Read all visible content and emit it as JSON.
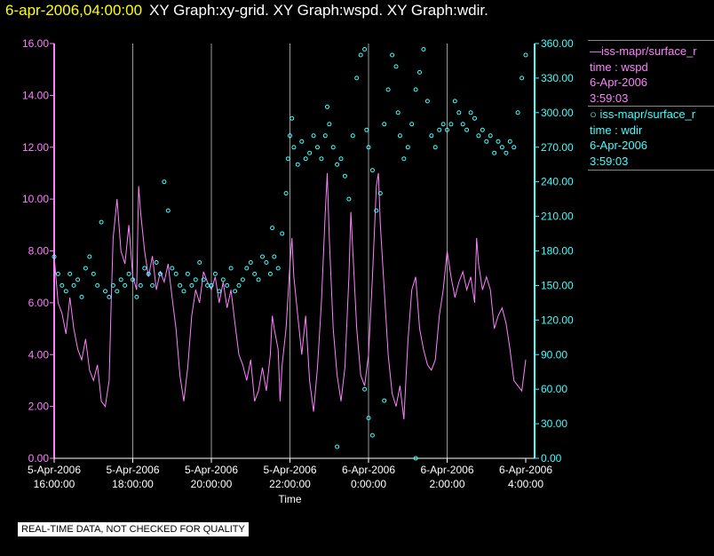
{
  "header": {
    "timestamp": "6-apr-2006,04:00:00",
    "graphs": "XY Graph:xy-grid.  XY Graph:wspd.  XY Graph:wdir."
  },
  "legend": [
    {
      "label": "iss-mapr/surface_r",
      "line1": "time : wspd",
      "line2": "6-Apr-2006",
      "line3": "3:59:03",
      "color": "#ff80ff",
      "marker": "line"
    },
    {
      "label": "iss-mapr/surface_r",
      "line1": "time : wdir",
      "line2": "6-Apr-2006",
      "line3": "3:59:03",
      "color": "#40ffff",
      "marker": "circle"
    }
  ],
  "notice": "REAL-TIME DATA, NOT CHECKED FOR QUALITY",
  "chart_data": {
    "type": "line",
    "title": "",
    "xlabel": "Time",
    "xlim": [
      16.0,
      28.0
    ],
    "x_ticks": [
      {
        "v": 16,
        "d": "5-Apr-2006",
        "t": "16:00:00"
      },
      {
        "v": 18,
        "d": "5-Apr-2006",
        "t": "18:00:00"
      },
      {
        "v": 20,
        "d": "5-Apr-2006",
        "t": "20:00:00"
      },
      {
        "v": 22,
        "d": "5-Apr-2006",
        "t": "22:00:00"
      },
      {
        "v": 24,
        "d": "6-Apr-2006",
        "t": "0:00:00"
      },
      {
        "v": 26,
        "d": "6-Apr-2006",
        "t": "2:00:00"
      },
      {
        "v": 28,
        "d": "6-Apr-2006",
        "t": "4:00:00"
      }
    ],
    "y_left": {
      "range": [
        0,
        16
      ],
      "ticks": [
        "0.00",
        "2.00",
        "4.00",
        "6.00",
        "8.00",
        "10.00",
        "12.00",
        "14.00",
        "16.00"
      ],
      "color": "#ff80ff"
    },
    "y_right": {
      "range": [
        0,
        360
      ],
      "ticks": [
        "0.00",
        "30.00",
        "60.00",
        "90.00",
        "120.00",
        "150.00",
        "180.00",
        "210.00",
        "240.00",
        "270.00",
        "300.00",
        "330.00",
        "360.00"
      ],
      "color": "#40ffff"
    },
    "grid": "vertical",
    "series": [
      {
        "name": "wspd",
        "axis": "left",
        "style": "line",
        "color": "#ff80ff",
        "points": [
          [
            16.0,
            7.8
          ],
          [
            16.1,
            6.0
          ],
          [
            16.2,
            5.6
          ],
          [
            16.3,
            4.8
          ],
          [
            16.4,
            6.2
          ],
          [
            16.5,
            5.0
          ],
          [
            16.6,
            4.2
          ],
          [
            16.7,
            3.8
          ],
          [
            16.8,
            4.6
          ],
          [
            16.9,
            3.4
          ],
          [
            17.0,
            3.0
          ],
          [
            17.1,
            3.6
          ],
          [
            17.2,
            2.2
          ],
          [
            17.3,
            2.0
          ],
          [
            17.4,
            3.0
          ],
          [
            17.45,
            6.0
          ],
          [
            17.5,
            8.5
          ],
          [
            17.6,
            10.0
          ],
          [
            17.7,
            8.0
          ],
          [
            17.8,
            7.5
          ],
          [
            17.9,
            9.0
          ],
          [
            18.0,
            7.0
          ],
          [
            18.1,
            6.5
          ],
          [
            18.15,
            10.5
          ],
          [
            18.2,
            9.5
          ],
          [
            18.3,
            8.0
          ],
          [
            18.4,
            7.0
          ],
          [
            18.5,
            7.8
          ],
          [
            18.6,
            6.5
          ],
          [
            18.7,
            7.2
          ],
          [
            18.8,
            6.8
          ],
          [
            18.9,
            7.5
          ],
          [
            19.0,
            6.2
          ],
          [
            19.1,
            5.0
          ],
          [
            19.2,
            3.2
          ],
          [
            19.3,
            2.2
          ],
          [
            19.4,
            3.5
          ],
          [
            19.5,
            5.5
          ],
          [
            19.6,
            6.5
          ],
          [
            19.7,
            6.0
          ],
          [
            19.8,
            7.2
          ],
          [
            19.9,
            6.8
          ],
          [
            20.0,
            6.5
          ],
          [
            20.1,
            7.0
          ],
          [
            20.2,
            6.0
          ],
          [
            20.3,
            6.8
          ],
          [
            20.4,
            5.8
          ],
          [
            20.5,
            6.5
          ],
          [
            20.6,
            5.2
          ],
          [
            20.7,
            4.0
          ],
          [
            20.8,
            3.6
          ],
          [
            20.9,
            3.0
          ],
          [
            21.0,
            3.8
          ],
          [
            21.1,
            2.2
          ],
          [
            21.2,
            2.6
          ],
          [
            21.3,
            3.5
          ],
          [
            21.4,
            2.6
          ],
          [
            21.5,
            4.0
          ],
          [
            21.55,
            5.5
          ],
          [
            21.6,
            5.0
          ],
          [
            21.7,
            4.2
          ],
          [
            21.75,
            2.2
          ],
          [
            21.8,
            3.6
          ],
          [
            21.9,
            5.0
          ],
          [
            22.0,
            7.5
          ],
          [
            22.05,
            8.5
          ],
          [
            22.1,
            7.0
          ],
          [
            22.2,
            5.5
          ],
          [
            22.3,
            4.0
          ],
          [
            22.4,
            5.5
          ],
          [
            22.5,
            3.0
          ],
          [
            22.6,
            1.8
          ],
          [
            22.7,
            3.5
          ],
          [
            22.8,
            6.0
          ],
          [
            22.9,
            9.5
          ],
          [
            22.95,
            11.0
          ],
          [
            23.0,
            8.5
          ],
          [
            23.1,
            5.0
          ],
          [
            23.2,
            3.2
          ],
          [
            23.3,
            2.2
          ],
          [
            23.4,
            3.5
          ],
          [
            23.5,
            7.0
          ],
          [
            23.55,
            9.5
          ],
          [
            23.6,
            8.0
          ],
          [
            23.7,
            5.0
          ],
          [
            23.8,
            3.2
          ],
          [
            23.9,
            2.8
          ],
          [
            24.0,
            4.0
          ],
          [
            24.1,
            7.0
          ],
          [
            24.2,
            10.5
          ],
          [
            24.25,
            11.0
          ],
          [
            24.3,
            9.0
          ],
          [
            24.4,
            6.5
          ],
          [
            24.5,
            4.0
          ],
          [
            24.6,
            2.5
          ],
          [
            24.7,
            2.0
          ],
          [
            24.8,
            2.8
          ],
          [
            24.9,
            1.5
          ],
          [
            25.0,
            4.5
          ],
          [
            25.1,
            6.5
          ],
          [
            25.2,
            7.0
          ],
          [
            25.3,
            5.0
          ],
          [
            25.4,
            4.2
          ],
          [
            25.5,
            3.6
          ],
          [
            25.6,
            3.4
          ],
          [
            25.7,
            3.8
          ],
          [
            25.8,
            5.5
          ],
          [
            25.9,
            6.5
          ],
          [
            26.0,
            8.0
          ],
          [
            26.1,
            7.0
          ],
          [
            26.2,
            6.2
          ],
          [
            26.3,
            6.8
          ],
          [
            26.4,
            7.2
          ],
          [
            26.5,
            6.5
          ],
          [
            26.6,
            7.0
          ],
          [
            26.7,
            6.0
          ],
          [
            26.75,
            8.5
          ],
          [
            26.8,
            7.5
          ],
          [
            26.9,
            6.5
          ],
          [
            27.0,
            7.0
          ],
          [
            27.1,
            6.5
          ],
          [
            27.2,
            5.0
          ],
          [
            27.3,
            5.5
          ],
          [
            27.4,
            5.8
          ],
          [
            27.5,
            5.2
          ],
          [
            27.6,
            4.2
          ],
          [
            27.7,
            3.0
          ],
          [
            27.8,
            2.8
          ],
          [
            27.9,
            2.6
          ],
          [
            28.0,
            3.8
          ]
        ]
      },
      {
        "name": "wdir",
        "axis": "right",
        "style": "scatter",
        "color": "#40ffff",
        "points": [
          [
            16.0,
            175
          ],
          [
            16.1,
            160
          ],
          [
            16.2,
            150
          ],
          [
            16.3,
            145
          ],
          [
            16.4,
            160
          ],
          [
            16.5,
            150
          ],
          [
            16.6,
            155
          ],
          [
            16.7,
            140
          ],
          [
            16.8,
            165
          ],
          [
            16.9,
            175
          ],
          [
            17.0,
            160
          ],
          [
            17.1,
            150
          ],
          [
            17.2,
            205
          ],
          [
            17.3,
            145
          ],
          [
            17.4,
            140
          ],
          [
            17.5,
            150
          ],
          [
            17.6,
            145
          ],
          [
            17.7,
            155
          ],
          [
            17.8,
            150
          ],
          [
            17.9,
            160
          ],
          [
            18.0,
            155
          ],
          [
            18.1,
            140
          ],
          [
            18.2,
            150
          ],
          [
            18.3,
            165
          ],
          [
            18.4,
            160
          ],
          [
            18.5,
            150
          ],
          [
            18.6,
            170
          ],
          [
            18.7,
            160
          ],
          [
            18.8,
            240
          ],
          [
            18.9,
            215
          ],
          [
            19.0,
            165
          ],
          [
            19.1,
            160
          ],
          [
            19.2,
            150
          ],
          [
            19.3,
            145
          ],
          [
            19.4,
            160
          ],
          [
            19.5,
            150
          ],
          [
            19.6,
            155
          ],
          [
            19.7,
            170
          ],
          [
            19.8,
            155
          ],
          [
            19.9,
            150
          ],
          [
            20.0,
            150
          ],
          [
            20.1,
            160
          ],
          [
            20.2,
            145
          ],
          [
            20.3,
            155
          ],
          [
            20.4,
            150
          ],
          [
            20.5,
            165
          ],
          [
            20.6,
            145
          ],
          [
            20.7,
            150
          ],
          [
            20.8,
            155
          ],
          [
            20.9,
            165
          ],
          [
            21.0,
            170
          ],
          [
            21.1,
            160
          ],
          [
            21.2,
            155
          ],
          [
            21.3,
            175
          ],
          [
            21.4,
            170
          ],
          [
            21.5,
            160
          ],
          [
            21.55,
            200
          ],
          [
            21.6,
            175
          ],
          [
            21.7,
            165
          ],
          [
            21.8,
            195
          ],
          [
            21.9,
            230
          ],
          [
            21.95,
            260
          ],
          [
            22.0,
            280
          ],
          [
            22.05,
            295
          ],
          [
            22.1,
            270
          ],
          [
            22.2,
            255
          ],
          [
            22.3,
            275
          ],
          [
            22.4,
            260
          ],
          [
            22.5,
            265
          ],
          [
            22.6,
            280
          ],
          [
            22.7,
            270
          ],
          [
            22.8,
            260
          ],
          [
            22.9,
            280
          ],
          [
            22.95,
            305
          ],
          [
            23.0,
            290
          ],
          [
            23.1,
            270
          ],
          [
            23.2,
            255
          ],
          [
            23.3,
            260
          ],
          [
            23.4,
            245
          ],
          [
            23.5,
            225
          ],
          [
            23.6,
            280
          ],
          [
            23.7,
            330
          ],
          [
            23.8,
            350
          ],
          [
            23.9,
            355
          ],
          [
            23.95,
            285
          ],
          [
            24.0,
            270
          ],
          [
            24.1,
            250
          ],
          [
            24.2,
            215
          ],
          [
            24.3,
            230
          ],
          [
            24.4,
            290
          ],
          [
            24.5,
            320
          ],
          [
            24.6,
            350
          ],
          [
            24.7,
            340
          ],
          [
            24.75,
            300
          ],
          [
            24.8,
            280
          ],
          [
            24.9,
            260
          ],
          [
            25.0,
            270
          ],
          [
            25.1,
            290
          ],
          [
            25.2,
            320
          ],
          [
            25.3,
            335
          ],
          [
            25.4,
            355
          ],
          [
            25.5,
            310
          ],
          [
            25.6,
            280
          ],
          [
            25.7,
            270
          ],
          [
            25.8,
            285
          ],
          [
            25.9,
            290
          ],
          [
            26.0,
            285
          ],
          [
            26.1,
            290
          ],
          [
            26.2,
            310
          ],
          [
            26.3,
            300
          ],
          [
            26.4,
            290
          ],
          [
            26.5,
            285
          ],
          [
            26.6,
            300
          ],
          [
            26.7,
            295
          ],
          [
            26.8,
            280
          ],
          [
            26.9,
            285
          ],
          [
            27.0,
            275
          ],
          [
            27.1,
            280
          ],
          [
            27.2,
            265
          ],
          [
            27.3,
            275
          ],
          [
            27.4,
            270
          ],
          [
            27.5,
            265
          ],
          [
            27.6,
            275
          ],
          [
            27.7,
            270
          ],
          [
            27.8,
            300
          ],
          [
            27.9,
            330
          ],
          [
            28.0,
            350
          ],
          [
            23.2,
            10
          ],
          [
            24.1,
            20
          ],
          [
            24.0,
            35
          ],
          [
            23.9,
            60
          ],
          [
            24.4,
            50
          ],
          [
            25.2,
            0
          ]
        ]
      }
    ]
  }
}
